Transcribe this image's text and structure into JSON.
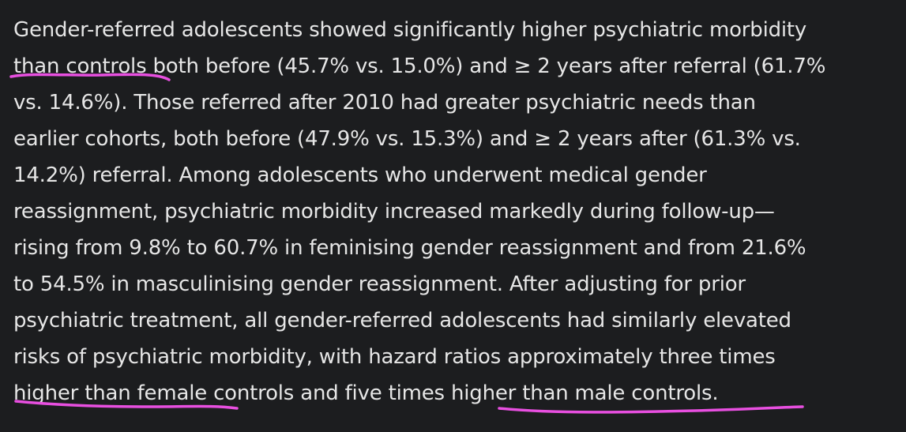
{
  "paragraph": {
    "lines": [
      "Gender-referred adolescents showed significantly higher psychiatric morbidity",
      "than controls both before (45.7% vs. 15.0%) and ≥ 2 years after referral (61.7%",
      "vs. 14.6%). Those referred after 2010 had greater psychiatric needs than",
      "earlier cohorts, both before (47.9% vs. 15.3%) and ≥ 2 years after (61.3% vs.",
      "14.2%) referral. Among adolescents who underwent medical gender",
      "reassignment, psychiatric morbidity increased markedly during follow-up—",
      "rising from 9.8% to 60.7% in feminising gender reassignment and from 21.6%",
      "to 54.5% in masculinising gender reassignment. After adjusting for prior",
      "psychiatric treatment, all gender-referred adolescents had similarly elevated",
      "risks of psychiatric morbidity, with hazard ratios approximately three times",
      "higher than female controls and five times higher than male controls."
    ]
  }
}
